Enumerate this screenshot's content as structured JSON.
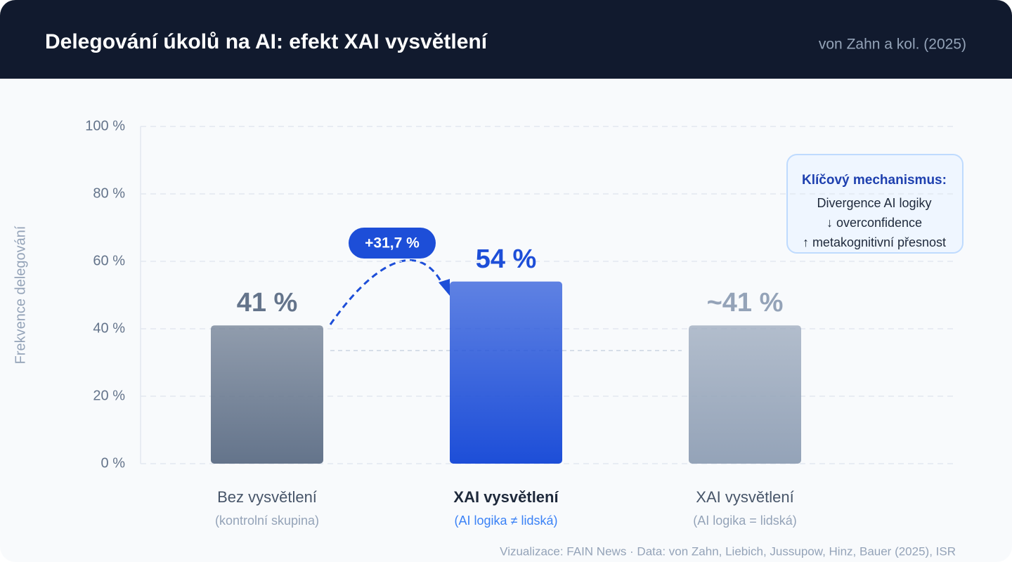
{
  "chart_data": {
    "type": "bar",
    "title": "Delegování úkolů na AI: efekt XAI vysvětlení",
    "subtitle": "von Zahn a kol. (2025)",
    "y_label": "Frekvence delegování",
    "categories": [
      "Bez vysvětlení",
      "XAI vysvětlení",
      "XAI vysvětlení"
    ],
    "category_notes": [
      "(kontrolní skupina)",
      "(AI logika ≠ lidská)",
      "(AI logika = lidská)"
    ],
    "values": [
      41,
      54,
      41
    ],
    "value_labels": [
      "41 %",
      "54 %",
      "~41 %"
    ],
    "colors": [
      "#64748b",
      "#1d4ed8",
      "#94a3b8"
    ],
    "ylim": [
      0,
      100
    ],
    "yticks": [
      {
        "value": 0,
        "label": "0 %"
      },
      {
        "value": 20,
        "label": "20 %"
      },
      {
        "value": 40,
        "label": "40 %"
      },
      {
        "value": 60,
        "label": "60 %"
      },
      {
        "value": 80,
        "label": "80 %"
      },
      {
        "value": 100,
        "label": "100 %"
      }
    ],
    "grid": true,
    "annotation": "+31,7 %",
    "box": {
      "title": "Klíčový mechanismus:",
      "lines": [
        "Divergence AI logiky",
        "↓ overconfidence",
        "↑ metakognitivní přesnost"
      ]
    },
    "source": "Vizualizace: FAIN News · Data: von Zahn, Liebich, Jussupow, Hinz, Bauer (2025), ISR"
  }
}
